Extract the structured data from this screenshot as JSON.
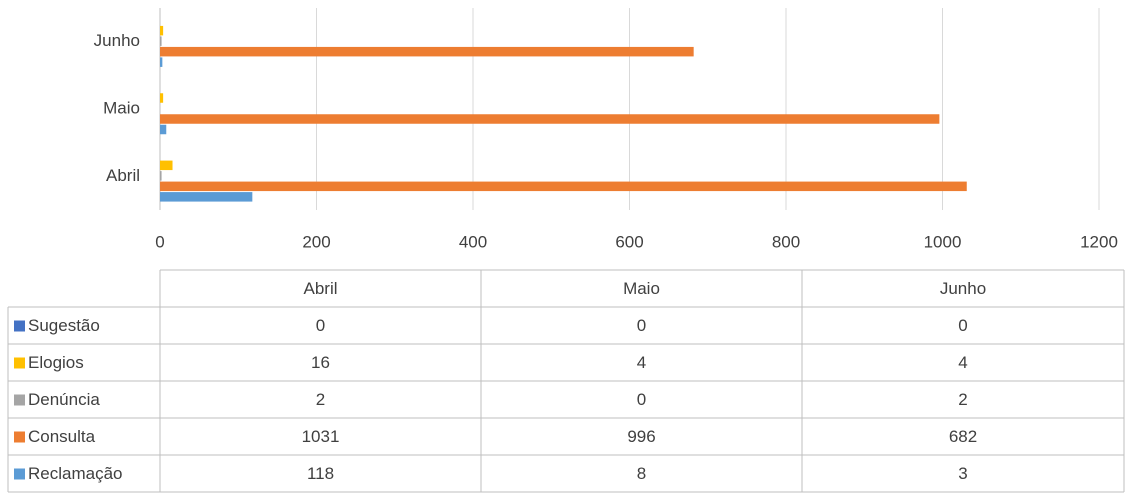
{
  "chart_data": {
    "type": "barh",
    "categories": [
      "Abril",
      "Maio",
      "Junho"
    ],
    "series": [
      {
        "name": "Sugestão",
        "color": "#4472c4",
        "values": [
          0,
          0,
          0
        ]
      },
      {
        "name": "Elogios",
        "color": "#ffc000",
        "values": [
          16,
          4,
          4
        ]
      },
      {
        "name": "Denúncia",
        "color": "#a5a5a5",
        "values": [
          2,
          0,
          2
        ]
      },
      {
        "name": "Consulta",
        "color": "#ed7d31",
        "values": [
          1031,
          996,
          682
        ]
      },
      {
        "name": "Reclamação",
        "color": "#5b9bd5",
        "values": [
          118,
          8,
          3
        ]
      }
    ],
    "xlim": [
      0,
      1200
    ],
    "xticks": [
      0,
      200,
      400,
      600,
      800,
      1000,
      1200
    ],
    "grid": true
  }
}
